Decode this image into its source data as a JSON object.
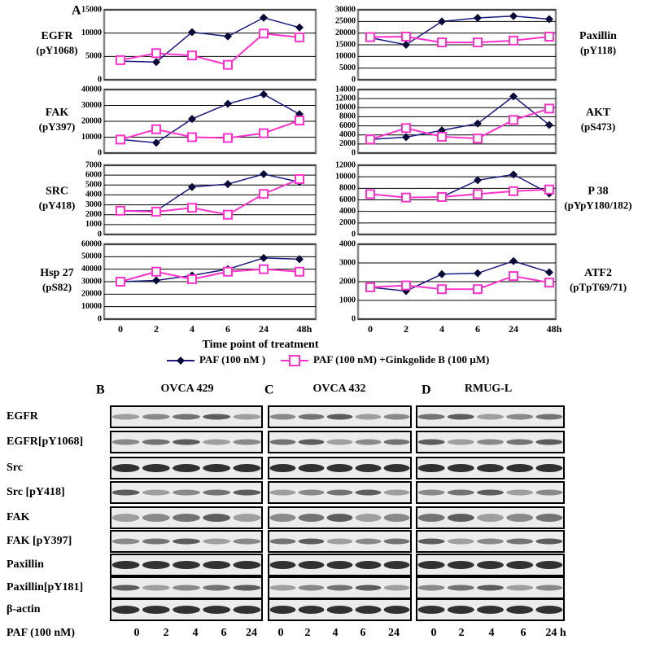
{
  "panel_letter": "A",
  "shared": {
    "categories": [
      "0",
      "2",
      "4",
      "6",
      "24",
      "48h"
    ],
    "x_label": "Time point of treatment",
    "series": [
      {
        "name": "PAF (100 nM )",
        "color": "#1a1a80"
      },
      {
        "name": "PAF (100 nM) +Ginkgolide B (100 µM)",
        "color": "#ff33cc"
      }
    ]
  },
  "chart_data": [
    {
      "type": "line",
      "label": "EGFR",
      "sublabel": "(pY1068)",
      "ylim": [
        0,
        15000
      ],
      "yticks": [
        0,
        5000,
        10000,
        15000
      ],
      "series": [
        {
          "values": [
            4000,
            3800,
            10200,
            9300,
            13300,
            11200
          ]
        },
        {
          "values": [
            4200,
            5700,
            5200,
            3200,
            9900,
            9100
          ]
        }
      ]
    },
    {
      "type": "line",
      "label": "Paxillin",
      "sublabel": "(pY118)",
      "ylim": [
        0,
        30000
      ],
      "yticks": [
        0,
        5000,
        10000,
        15000,
        20000,
        25000,
        30000
      ],
      "series": [
        {
          "values": [
            18000,
            15000,
            25000,
            26500,
            27300,
            26000
          ]
        },
        {
          "values": [
            18300,
            18500,
            16000,
            16000,
            16800,
            18500
          ]
        }
      ]
    },
    {
      "type": "line",
      "label": "FAK",
      "sublabel": "(pY397)",
      "ylim": [
        0,
        40000
      ],
      "yticks": [
        0,
        10000,
        20000,
        30000,
        40000
      ],
      "series": [
        {
          "values": [
            8500,
            6500,
            21500,
            31000,
            37000,
            24500
          ]
        },
        {
          "values": [
            8500,
            15000,
            10000,
            9500,
            12500,
            20500
          ]
        }
      ]
    },
    {
      "type": "line",
      "label": "AKT",
      "sublabel": "(pS473)",
      "ylim": [
        0,
        14000
      ],
      "yticks": [
        0,
        2000,
        4000,
        6000,
        8000,
        10000,
        12000,
        14000
      ],
      "series": [
        {
          "values": [
            3000,
            3500,
            5000,
            6500,
            12500,
            6200
          ]
        },
        {
          "values": [
            3000,
            5500,
            3600,
            3200,
            7300,
            9800
          ]
        }
      ]
    },
    {
      "type": "line",
      "label": "SRC",
      "sublabel": "(pY418)",
      "ylim": [
        0,
        7000
      ],
      "yticks": [
        0,
        1000,
        2000,
        3000,
        4000,
        5000,
        6000,
        7000
      ],
      "series": [
        {
          "values": [
            2400,
            2400,
            4800,
            5100,
            6100,
            5300
          ]
        },
        {
          "values": [
            2400,
            2300,
            2700,
            2000,
            4100,
            5600
          ]
        }
      ]
    },
    {
      "type": "line",
      "label": "P 38",
      "sublabel": "(pYpY180/182)",
      "ylim": [
        0,
        12000
      ],
      "yticks": [
        0,
        2000,
        4000,
        6000,
        8000,
        10000,
        12000
      ],
      "series": [
        {
          "values": [
            7000,
            6400,
            6500,
            9400,
            10400,
            7100
          ]
        },
        {
          "values": [
            7000,
            6400,
            6500,
            7000,
            7500,
            7800
          ]
        }
      ]
    },
    {
      "type": "line",
      "label": "Hsp 27",
      "sublabel": "(pS82)",
      "ylim": [
        0,
        60000
      ],
      "yticks": [
        0,
        10000,
        20000,
        30000,
        40000,
        50000,
        60000
      ],
      "series": [
        {
          "values": [
            30000,
            31000,
            35000,
            40000,
            49000,
            48000
          ]
        },
        {
          "values": [
            30000,
            38000,
            32000,
            38000,
            40000,
            38000
          ]
        }
      ]
    },
    {
      "type": "line",
      "label": "ATF2",
      "sublabel": "(pTpT69/71)",
      "ylim": [
        0,
        4000
      ],
      "yticks": [
        0,
        1000,
        2000,
        3000,
        4000
      ],
      "series": [
        {
          "values": [
            1700,
            1500,
            2400,
            2450,
            3100,
            2500
          ]
        },
        {
          "values": [
            1700,
            1800,
            1600,
            1600,
            2300,
            1950
          ]
        }
      ]
    }
  ],
  "blots": {
    "panels": [
      {
        "letter": "B",
        "title": "OVCA 429",
        "lanes": [
          "0",
          "2",
          "4",
          "6",
          "24"
        ]
      },
      {
        "letter": "C",
        "title": "OVCA 432",
        "lanes": [
          "0",
          "2",
          "4",
          "6",
          "24"
        ]
      },
      {
        "letter": "D",
        "title": "RMUG-L",
        "lanes": [
          "0",
          "2",
          "4",
          "6",
          "24 h"
        ]
      }
    ],
    "rows": [
      "EGFR",
      "EGFR[pY1068]",
      "Src",
      "Src [pY418]",
      "FAK",
      "FAK [pY397]",
      "Paxillin",
      "Paxillin[pY181]",
      "β-actin"
    ],
    "treatment_label": "PAF (100 nM)"
  }
}
